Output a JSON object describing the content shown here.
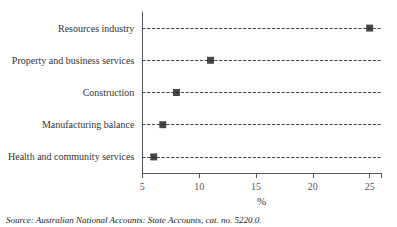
{
  "chart_data": {
    "type": "dot",
    "categories": [
      "Health and community services",
      "Manufacturing balance",
      "Construction",
      "Property and business services",
      "Resources industry"
    ],
    "values": [
      6.0,
      6.8,
      8.0,
      11.0,
      25.0
    ],
    "color": "#1a1a1a",
    "marker": "square",
    "line_style": "dashed",
    "xlim": [
      5,
      26
    ],
    "xticks": [
      5,
      10,
      15,
      20,
      25
    ],
    "xlabel": "%",
    "grid": false,
    "source": "Source: Australian National Accounts: State Accounts, cat. no. 5220.0."
  }
}
